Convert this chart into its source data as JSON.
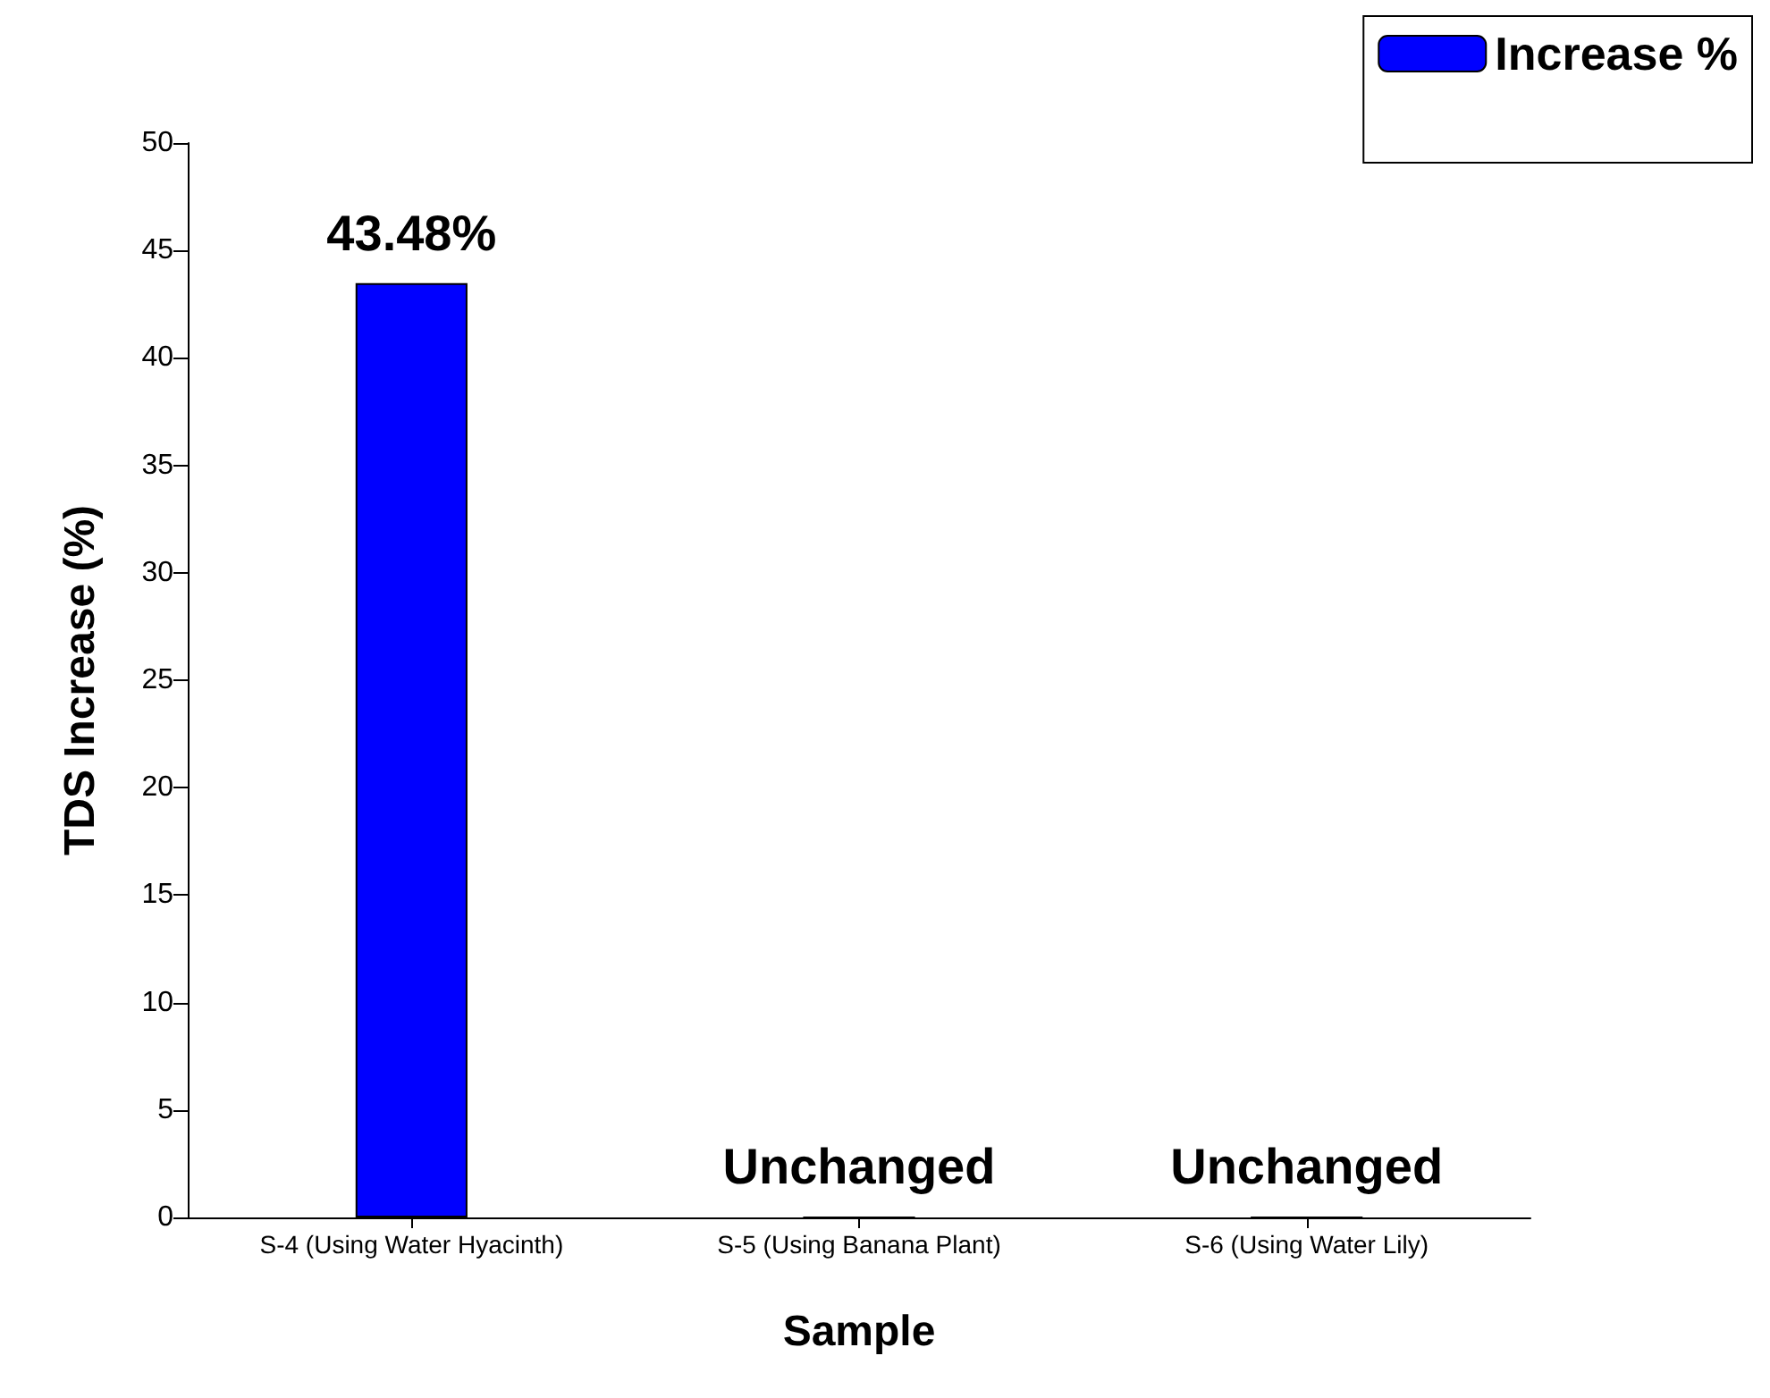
{
  "chart_data": {
    "type": "bar",
    "xlabel": "Sample",
    "ylabel": "TDS Increase (%)",
    "categories": [
      "S-4 (Using Water Hyacinth)",
      "S-5 (Using Banana Plant)",
      "S-6 (Using Water Lily)"
    ],
    "series": [
      {
        "name": "Increase %",
        "color": "#0000ff",
        "values": [
          43.48,
          0,
          0
        ],
        "value_labels": [
          "43.48%",
          "Unchanged",
          "Unchanged"
        ]
      }
    ],
    "ylim": [
      0,
      50
    ],
    "yticks": [
      0,
      5,
      10,
      15,
      20,
      25,
      30,
      35,
      40,
      45,
      50
    ],
    "grid": false,
    "legend": "top right"
  }
}
